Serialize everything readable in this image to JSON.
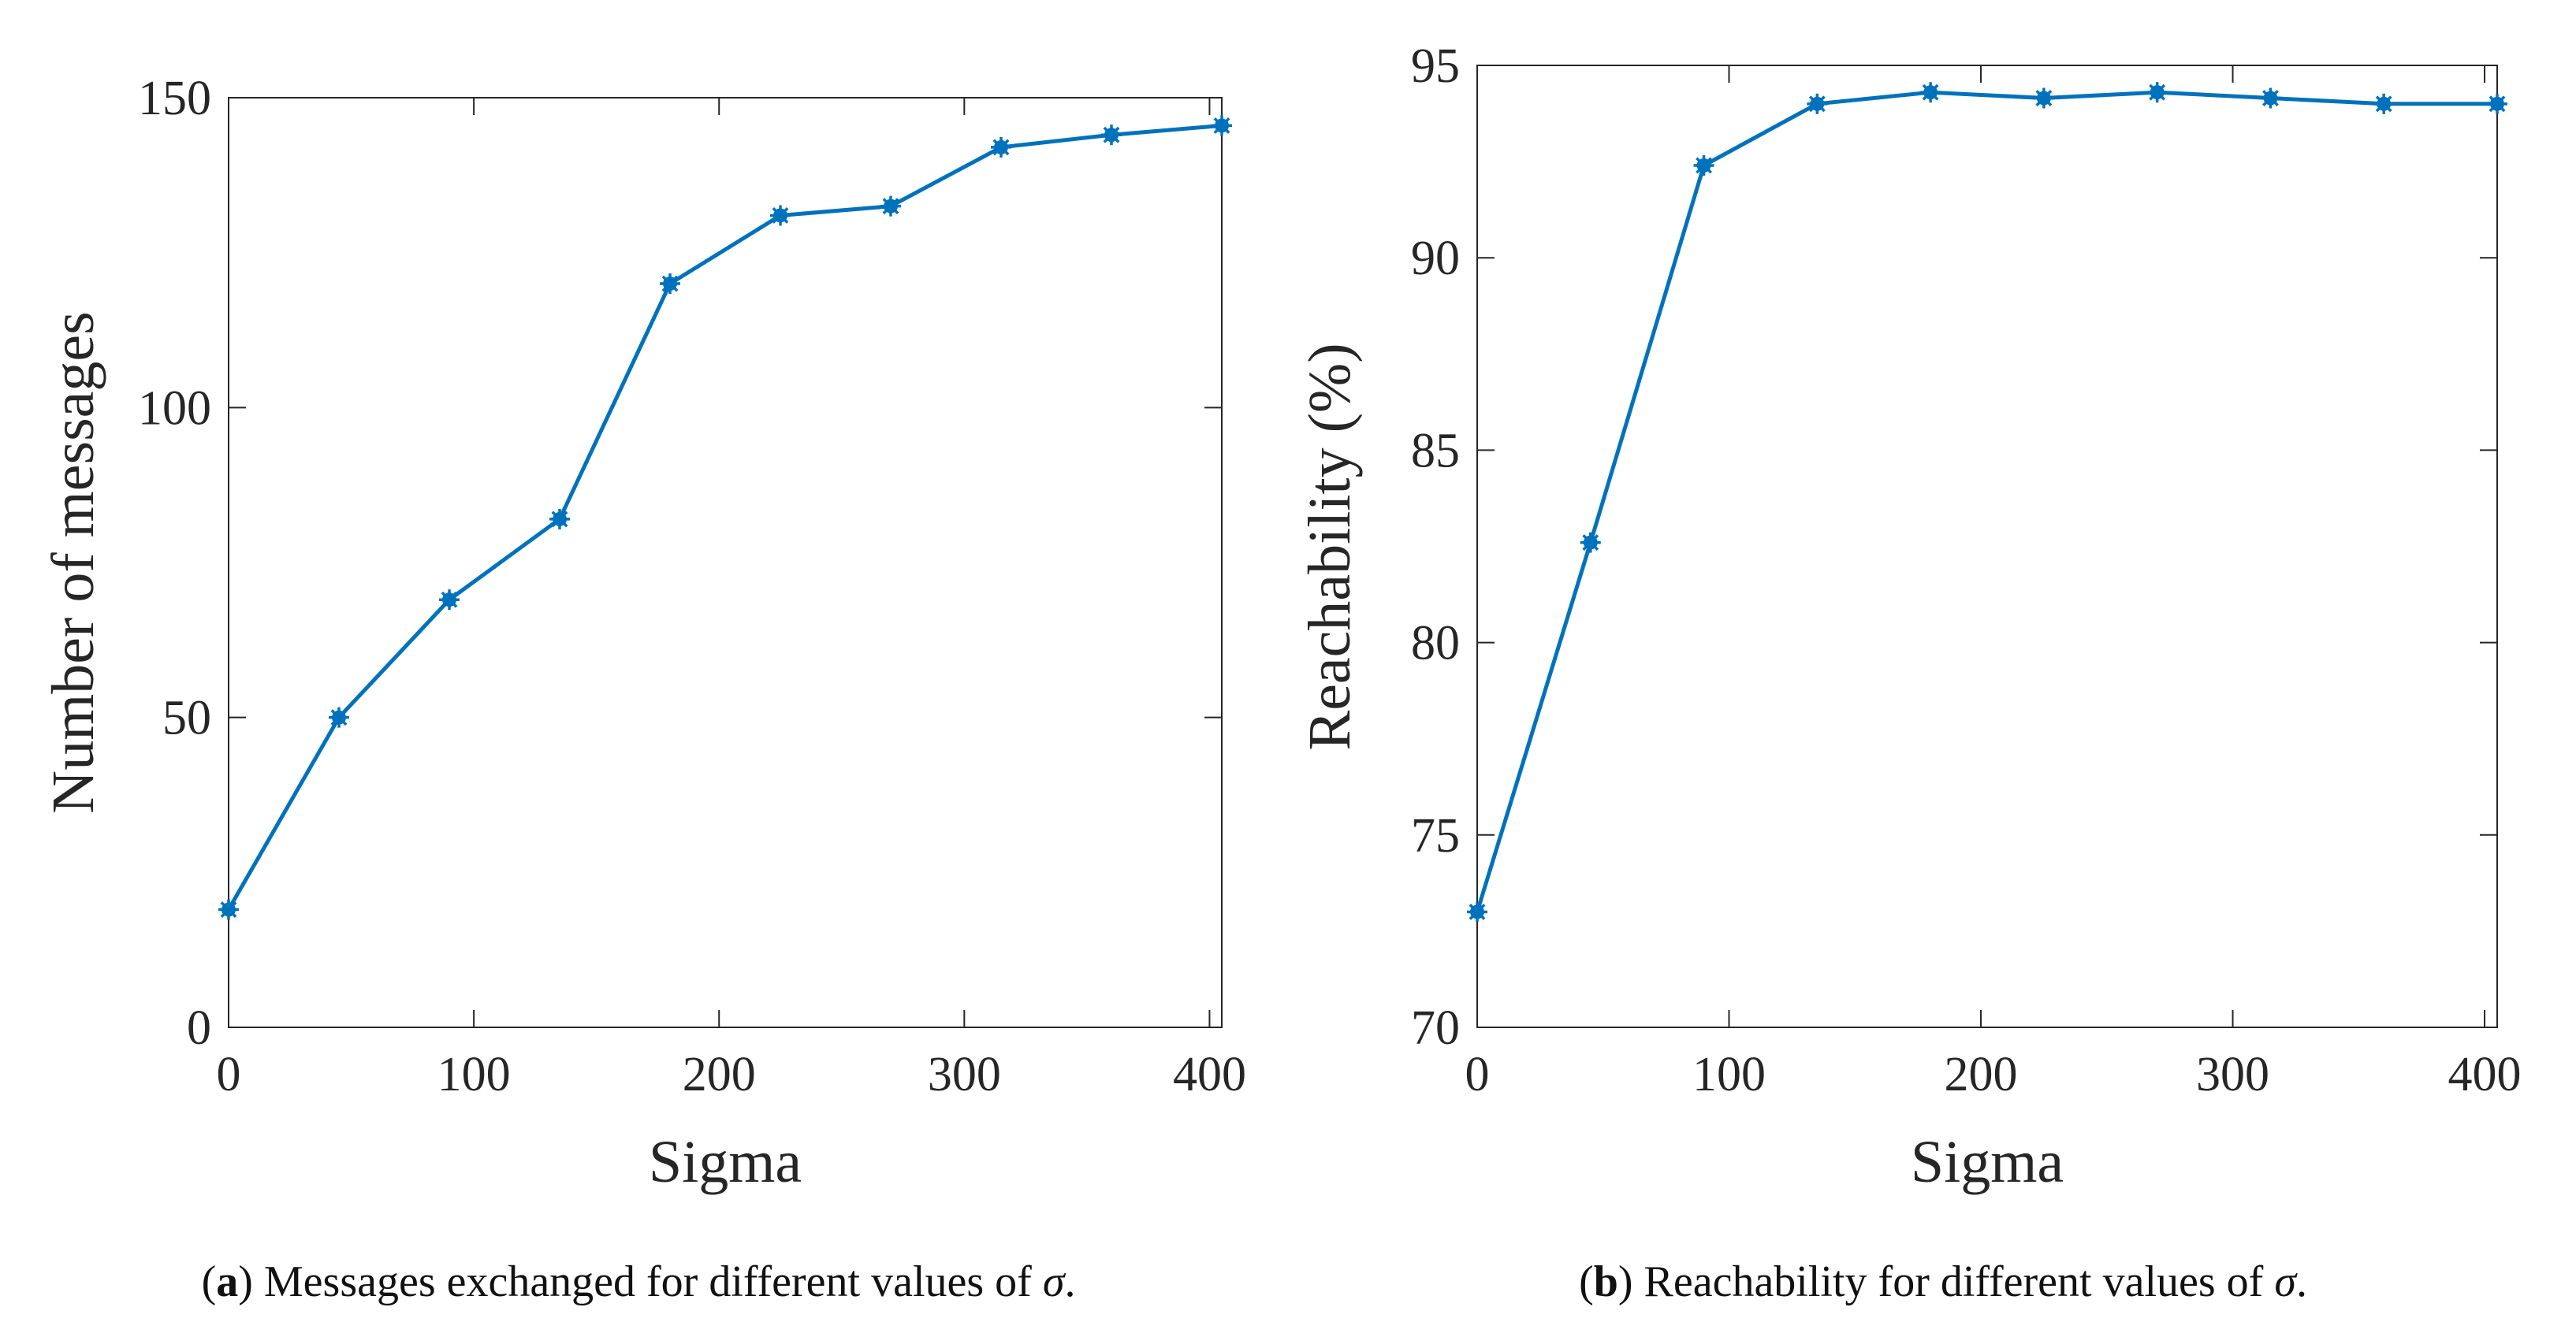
{
  "chart_data": [
    {
      "type": "line",
      "title": "",
      "xlabel": "Sigma",
      "ylabel": "Number of messages",
      "xlim": [
        0,
        405
      ],
      "ylim": [
        0,
        150
      ],
      "xticks": [
        0,
        100,
        200,
        300,
        400
      ],
      "yticks": [
        0,
        50,
        100,
        150
      ],
      "series": [
        {
          "name": "Messages",
          "color": "#0072BD",
          "x": [
            0,
            45,
            90,
            135,
            180,
            225,
            270,
            315,
            360,
            405
          ],
          "y": [
            19,
            50,
            69,
            82,
            120,
            131,
            132.5,
            142,
            144,
            145.5
          ]
        }
      ],
      "caption": {
        "label": "a",
        "text": "Messages exchanged for different values of ",
        "symbol": "σ",
        "end": "."
      }
    },
    {
      "type": "line",
      "title": "",
      "xlabel": "Sigma",
      "ylabel": "Reachability (%)",
      "xlim": [
        0,
        405
      ],
      "ylim": [
        70,
        95
      ],
      "xticks": [
        0,
        100,
        200,
        300,
        400
      ],
      "yticks": [
        70,
        75,
        80,
        85,
        90,
        95
      ],
      "series": [
        {
          "name": "Reachability",
          "color": "#0072BD",
          "x": [
            0,
            45,
            90,
            135,
            180,
            225,
            270,
            315,
            360,
            405
          ],
          "y": [
            73,
            82.6,
            92.4,
            94,
            94.3,
            94.15,
            94.3,
            94.15,
            94,
            94
          ]
        }
      ],
      "caption": {
        "label": "b",
        "text": "Reachability for different values of ",
        "symbol": "σ",
        "end": "."
      }
    }
  ]
}
